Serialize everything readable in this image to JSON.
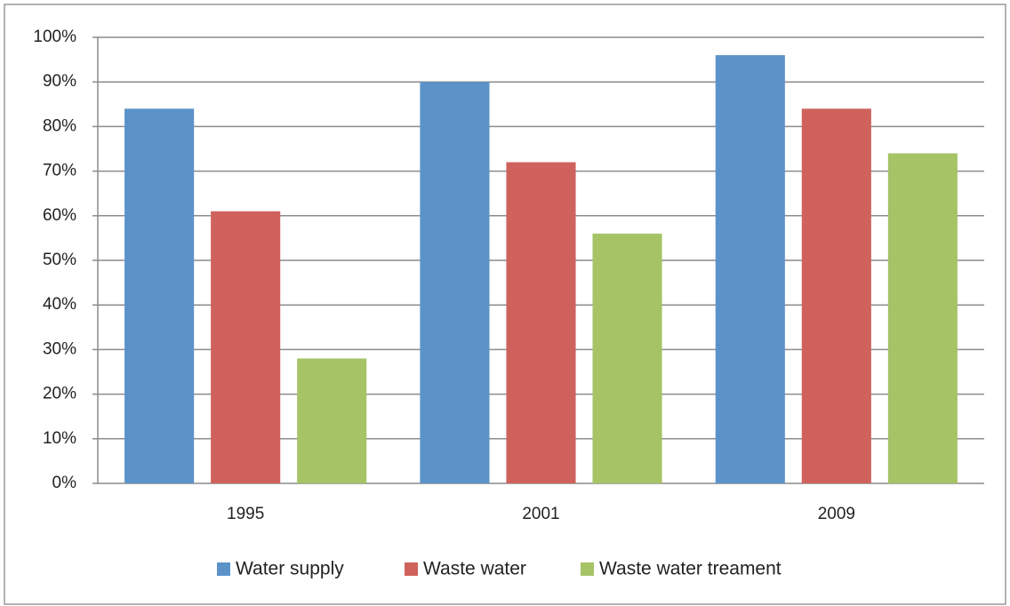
{
  "chart_data": {
    "type": "bar",
    "categories": [
      "1995",
      "2001",
      "2009"
    ],
    "series": [
      {
        "name": "Water supply",
        "color": "#5b93c9",
        "values": [
          84,
          90,
          96
        ]
      },
      {
        "name": "Waste water",
        "color": "#cf625c",
        "values": [
          61,
          72,
          84
        ]
      },
      {
        "name": "Waste water treament",
        "color": "#a6c366",
        "values": [
          28,
          56,
          74
        ]
      }
    ],
    "ylim": [
      0,
      100
    ],
    "yticks": [
      {
        "value": 0,
        "label": "0%"
      },
      {
        "value": 10,
        "label": "10%"
      },
      {
        "value": 20,
        "label": "20%"
      },
      {
        "value": 30,
        "label": "30%"
      },
      {
        "value": 40,
        "label": "40%"
      },
      {
        "value": 50,
        "label": "50%"
      },
      {
        "value": 60,
        "label": "60%"
      },
      {
        "value": 70,
        "label": "70%"
      },
      {
        "value": 80,
        "label": "80%"
      },
      {
        "value": 90,
        "label": "90%"
      },
      {
        "value": 100,
        "label": "100%"
      }
    ],
    "grid": true,
    "legend": "bottom"
  }
}
